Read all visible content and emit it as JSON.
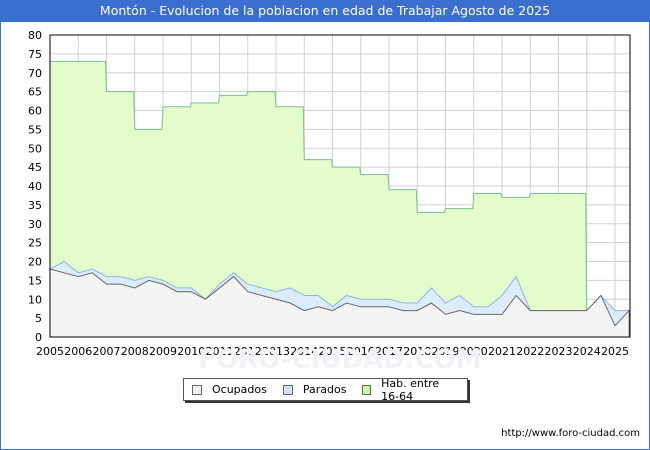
{
  "header": {
    "title": "Montón - Evolucion de la poblacion en edad de Trabajar Agosto de 2025"
  },
  "legend": [
    {
      "label": "Ocupados",
      "color": "#f0f0f0"
    },
    {
      "label": "Parados",
      "color": "#cfe2f8"
    },
    {
      "label": "Hab. entre 16-64",
      "color": "#ccf5a8"
    }
  ],
  "footer": {
    "url": "http://www.foro-ciudad.com"
  },
  "watermark": "FORO-CIUDAD.COM",
  "chart_data": {
    "type": "area",
    "title": "Montón - Evolucion de la poblacion en edad de Trabajar Agosto de 2025",
    "xlabel": "",
    "ylabel": "",
    "ylim": [
      0,
      80
    ],
    "yticks": [
      0,
      5,
      10,
      15,
      20,
      25,
      30,
      35,
      40,
      45,
      50,
      55,
      60,
      65,
      70,
      75,
      80
    ],
    "xticks": [
      "2005",
      "2006",
      "2007",
      "2008",
      "2009",
      "2010",
      "2011",
      "2012",
      "2013",
      "2014",
      "2015",
      "2016",
      "2017",
      "2018",
      "2019",
      "2020",
      "2021",
      "2022",
      "2023",
      "2024",
      "2025"
    ],
    "grid": true,
    "legend_position": "bottom",
    "series": [
      {
        "name": "Hab. entre 16-64",
        "x": [
          2005,
          2006,
          2007,
          2008,
          2009,
          2010,
          2011,
          2012,
          2013,
          2014,
          2015,
          2016,
          2017,
          2018,
          2019,
          2020,
          2021,
          2022,
          2023
        ],
        "values": [
          73,
          73,
          65,
          55,
          61,
          62,
          64,
          65,
          61,
          47,
          45,
          43,
          39,
          33,
          34,
          38,
          37,
          38,
          38
        ]
      },
      {
        "name": "Parados",
        "x": [
          2005,
          2005.5,
          2006,
          2006.5,
          2007,
          2007.5,
          2008,
          2008.5,
          2009,
          2009.5,
          2010,
          2010.5,
          2011,
          2011.5,
          2012,
          2012.5,
          2013,
          2013.5,
          2014,
          2014.5,
          2015,
          2015.5,
          2016,
          2016.5,
          2017,
          2017.5,
          2018,
          2018.5,
          2019,
          2019.5,
          2020,
          2020.5,
          2021,
          2021.5,
          2022,
          2022.5,
          2023,
          2023.5,
          2024,
          2024.5,
          2025,
          2025.5
        ],
        "values": [
          18,
          20,
          17,
          18,
          16,
          16,
          15,
          16,
          15,
          13,
          13,
          10,
          14,
          17,
          14,
          13,
          12,
          13,
          11,
          11,
          8,
          11,
          10,
          10,
          10,
          9,
          9,
          13,
          9,
          11,
          8,
          8,
          11,
          16,
          7,
          7,
          7,
          7,
          7,
          11,
          7,
          7
        ]
      },
      {
        "name": "Ocupados",
        "x": [
          2005,
          2005.5,
          2006,
          2006.5,
          2007,
          2007.5,
          2008,
          2008.5,
          2009,
          2009.5,
          2010,
          2010.5,
          2011,
          2011.5,
          2012,
          2012.5,
          2013,
          2013.5,
          2014,
          2014.5,
          2015,
          2015.5,
          2016,
          2016.5,
          2017,
          2017.5,
          2018,
          2018.5,
          2019,
          2019.5,
          2020,
          2020.5,
          2021,
          2021.5,
          2022,
          2022.5,
          2023,
          2023.5,
          2024,
          2024.5,
          2025,
          2025.5
        ],
        "values": [
          18,
          17,
          16,
          17,
          14,
          14,
          13,
          15,
          14,
          12,
          12,
          10,
          13,
          16,
          12,
          11,
          10,
          9,
          7,
          8,
          7,
          9,
          8,
          8,
          8,
          7,
          7,
          9,
          6,
          7,
          6,
          6,
          6,
          11,
          7,
          7,
          7,
          7,
          7,
          11,
          3,
          7
        ]
      }
    ]
  }
}
